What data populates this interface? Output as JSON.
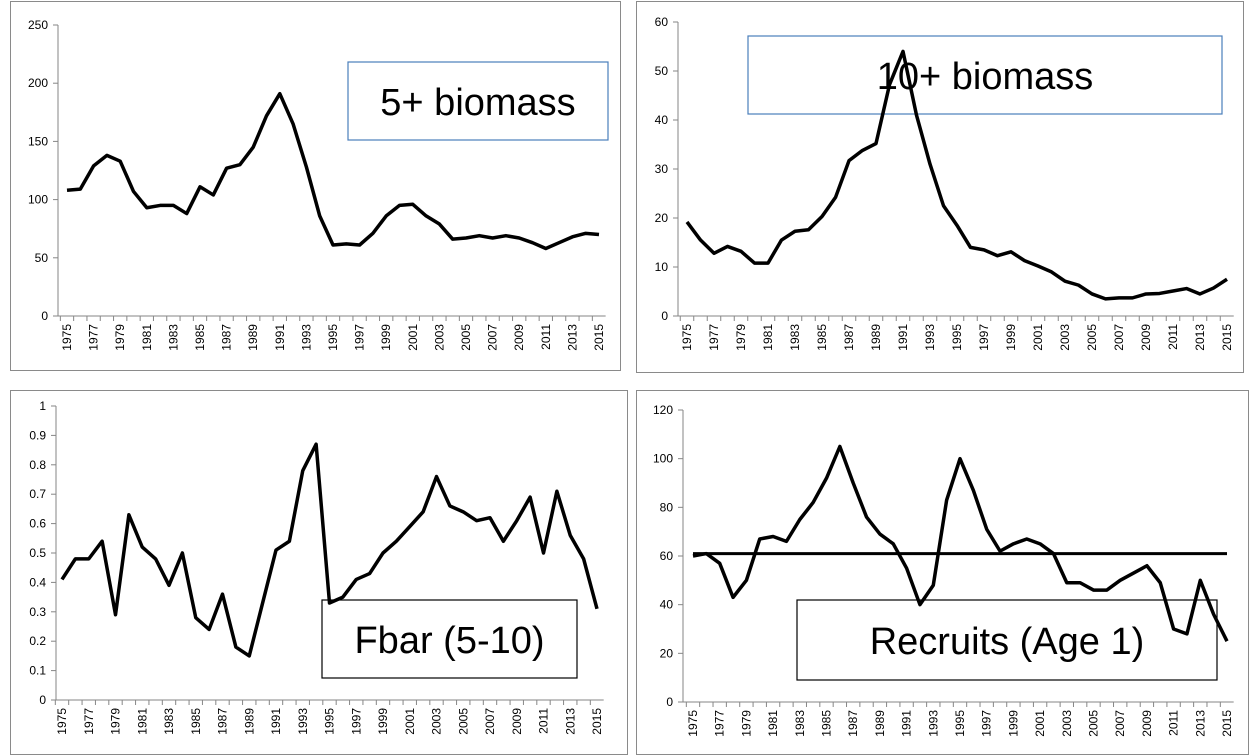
{
  "chart_data": [
    {
      "type": "line",
      "title": "5+ biomass",
      "color": "#000000",
      "box_color": "#4a7ebb",
      "categories": [
        "1975",
        null,
        "1977",
        null,
        "1979",
        null,
        "1981",
        null,
        "1983",
        null,
        "1985",
        null,
        "1987",
        null,
        "1989",
        null,
        "1991",
        null,
        "1993",
        null,
        "1995",
        null,
        "1997",
        null,
        "1999",
        null,
        "2001",
        null,
        "2003",
        null,
        "2005",
        null,
        "2007",
        null,
        "2009",
        null,
        "2011",
        null,
        "2013",
        null,
        "2015"
      ],
      "values": [
        108,
        109,
        129,
        138,
        133,
        107,
        93,
        95,
        95,
        88,
        111,
        104,
        127,
        130,
        145,
        172,
        191,
        165,
        128,
        86,
        61,
        62,
        61,
        71,
        86,
        95,
        96,
        86,
        79,
        66,
        67,
        69,
        67,
        69,
        67,
        63,
        58,
        63,
        68,
        71,
        70
      ],
      "ylim": [
        0,
        250
      ],
      "yticks": [
        0,
        50,
        100,
        150,
        200,
        250
      ]
    },
    {
      "type": "line",
      "title": "10+ biomass",
      "color": "#000000",
      "box_color": "#4a7ebb",
      "categories": [
        "1975",
        null,
        "1977",
        null,
        "1979",
        null,
        "1981",
        null,
        "1983",
        null,
        "1985",
        null,
        "1987",
        null,
        "1989",
        null,
        "1991",
        null,
        "1993",
        null,
        "1995",
        null,
        "1997",
        null,
        "1999",
        null,
        "2001",
        null,
        "2003",
        null,
        "2005",
        null,
        "2007",
        null,
        "2009",
        null,
        "2011",
        null,
        "2013",
        null,
        "2015"
      ],
      "values": [
        19.2,
        15.5,
        12.8,
        14.2,
        13.2,
        10.8,
        10.8,
        15.5,
        17.3,
        17.6,
        20.3,
        24.2,
        31.7,
        33.8,
        35.2,
        47.2,
        54,
        41,
        31,
        22.5,
        18.5,
        14,
        13.5,
        12.3,
        13.1,
        11.3,
        10.2,
        9,
        7.1,
        6.3,
        4.5,
        3.5,
        3.7,
        3.7,
        4.5,
        4.6,
        5.1,
        5.6,
        4.5,
        5.7,
        7.5
      ],
      "ylim": [
        0,
        60
      ],
      "yticks": [
        0,
        10,
        20,
        30,
        40,
        50,
        60
      ]
    },
    {
      "type": "line",
      "title": "Fbar (5-10)",
      "color": "#000000",
      "box_color": "#000000",
      "categories": [
        "1975",
        null,
        "1977",
        null,
        "1979",
        null,
        "1981",
        null,
        "1983",
        null,
        "1985",
        null,
        "1987",
        null,
        "1989",
        null,
        "1991",
        null,
        "1993",
        null,
        "1995",
        null,
        "1997",
        null,
        "1999",
        null,
        "2001",
        null,
        "2003",
        null,
        "2005",
        null,
        "2007",
        null,
        "2009",
        null,
        "2011",
        null,
        "2013",
        null,
        "2015"
      ],
      "values": [
        0.41,
        0.48,
        0.48,
        0.54,
        0.29,
        0.63,
        0.52,
        0.48,
        0.39,
        0.5,
        0.28,
        0.24,
        0.36,
        0.18,
        0.15,
        0.33,
        0.51,
        0.54,
        0.78,
        0.87,
        0.33,
        0.35,
        0.41,
        0.43,
        0.5,
        0.54,
        0.59,
        0.64,
        0.76,
        0.66,
        0.64,
        0.61,
        0.62,
        0.54,
        0.61,
        0.69,
        0.5,
        0.71,
        0.56,
        0.48,
        0.31
      ],
      "ylim": [
        0,
        1
      ],
      "yticks": [
        0,
        0.1,
        0.2,
        0.3,
        0.4,
        0.5,
        0.6,
        0.7,
        0.8,
        0.9,
        1
      ]
    },
    {
      "type": "line",
      "title": "Recruits (Age 1)",
      "color": "#000000",
      "box_color": "#000000",
      "categories": [
        "1975",
        null,
        "1977",
        null,
        "1979",
        null,
        "1981",
        null,
        "1983",
        null,
        "1985",
        null,
        "1987",
        null,
        "1989",
        null,
        "1991",
        null,
        "1993",
        null,
        "1995",
        null,
        "1997",
        null,
        "1999",
        null,
        "2001",
        null,
        "2003",
        null,
        "2005",
        null,
        "2007",
        null,
        "2009",
        null,
        "2011",
        null,
        "2013",
        null,
        "2015"
      ],
      "values": [
        60,
        61,
        57,
        43,
        50,
        67,
        68,
        66,
        75,
        82,
        92,
        105,
        90,
        76,
        69,
        65,
        55,
        40,
        48,
        83,
        100,
        87,
        71,
        62,
        65,
        67,
        65,
        61,
        49,
        49,
        46,
        46,
        50,
        53,
        56,
        49,
        30,
        28,
        50,
        36,
        25
      ],
      "hline": 61,
      "ylim": [
        0,
        120
      ],
      "yticks": [
        0,
        20,
        40,
        60,
        80,
        100,
        120
      ]
    }
  ]
}
